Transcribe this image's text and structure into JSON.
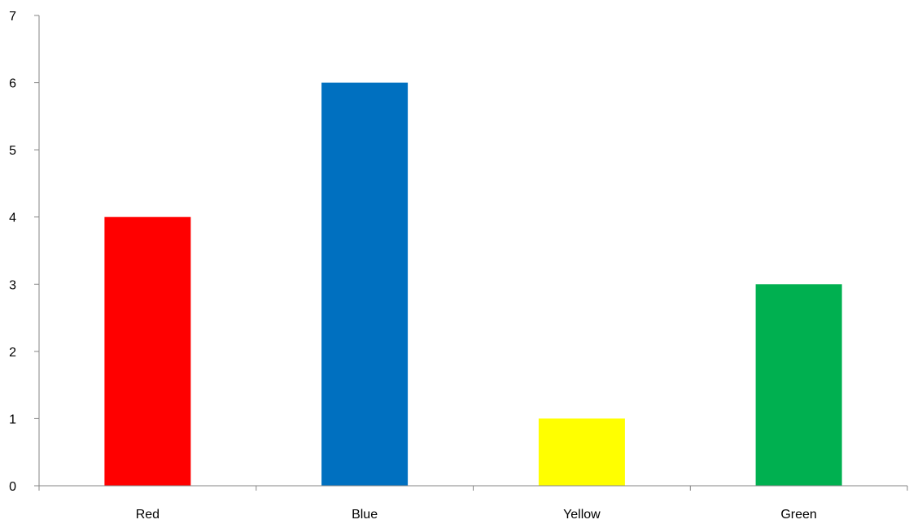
{
  "chart_data": {
    "type": "bar",
    "categories": [
      "Red",
      "Blue",
      "Yellow",
      "Green"
    ],
    "values": [
      4,
      6,
      1,
      3
    ],
    "bar_colors": [
      "#FF0000",
      "#0070C0",
      "#FFFF00",
      "#00B050"
    ],
    "title": "",
    "xlabel": "",
    "ylabel": "",
    "ylim": [
      0,
      7
    ],
    "yticks": [
      0,
      1,
      2,
      3,
      4,
      5,
      6,
      7
    ],
    "grid": false,
    "legend": "none"
  }
}
